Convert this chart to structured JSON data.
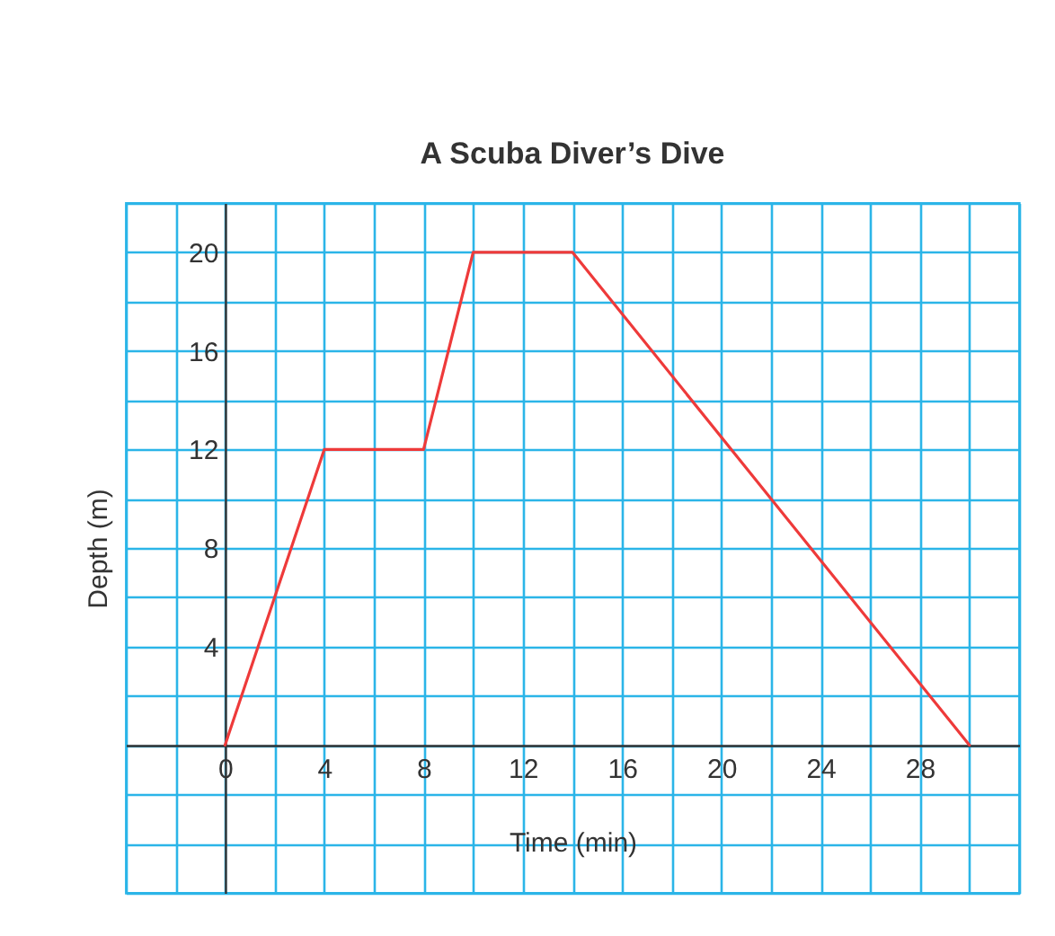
{
  "chart_data": {
    "type": "line",
    "title": "A Scuba Diver’s Dive",
    "xlabel": "Time (min)",
    "ylabel": "Depth (m)",
    "x": [
      0,
      4,
      8,
      10,
      14,
      30
    ],
    "series": [
      {
        "color": "#ee3a3a",
        "values": [
          0,
          12,
          12,
          20,
          20,
          0
        ]
      }
    ],
    "xlim": [
      -4,
      32
    ],
    "ylim": [
      -6,
      22
    ],
    "xticks": [
      {
        "value": -4,
        "label": null
      },
      {
        "value": -2,
        "label": null
      },
      0,
      {
        "value": 2,
        "label": null
      },
      4,
      {
        "value": 6,
        "label": null
      },
      8,
      {
        "value": 10,
        "label": null
      },
      12,
      {
        "value": 14,
        "label": null
      },
      16,
      {
        "value": 18,
        "label": null
      },
      20,
      {
        "value": 22,
        "label": null
      },
      24,
      {
        "value": 26,
        "label": null
      },
      28,
      {
        "value": 30,
        "label": null
      },
      {
        "value": 32,
        "label": null
      }
    ],
    "yticks": [
      {
        "value": -6,
        "label": null
      },
      {
        "value": -4,
        "label": null
      },
      {
        "value": -2,
        "label": null
      },
      {
        "value": 0,
        "label": null
      },
      {
        "value": 2,
        "label": null
      },
      4,
      {
        "value": 6,
        "label": null
      },
      8,
      {
        "value": 10,
        "label": null
      },
      12,
      {
        "value": 14,
        "label": null
      },
      16,
      {
        "value": 18,
        "label": null
      },
      20,
      {
        "value": 22,
        "label": null
      }
    ],
    "grid": true,
    "marker": "none",
    "line_style": "solid"
  }
}
